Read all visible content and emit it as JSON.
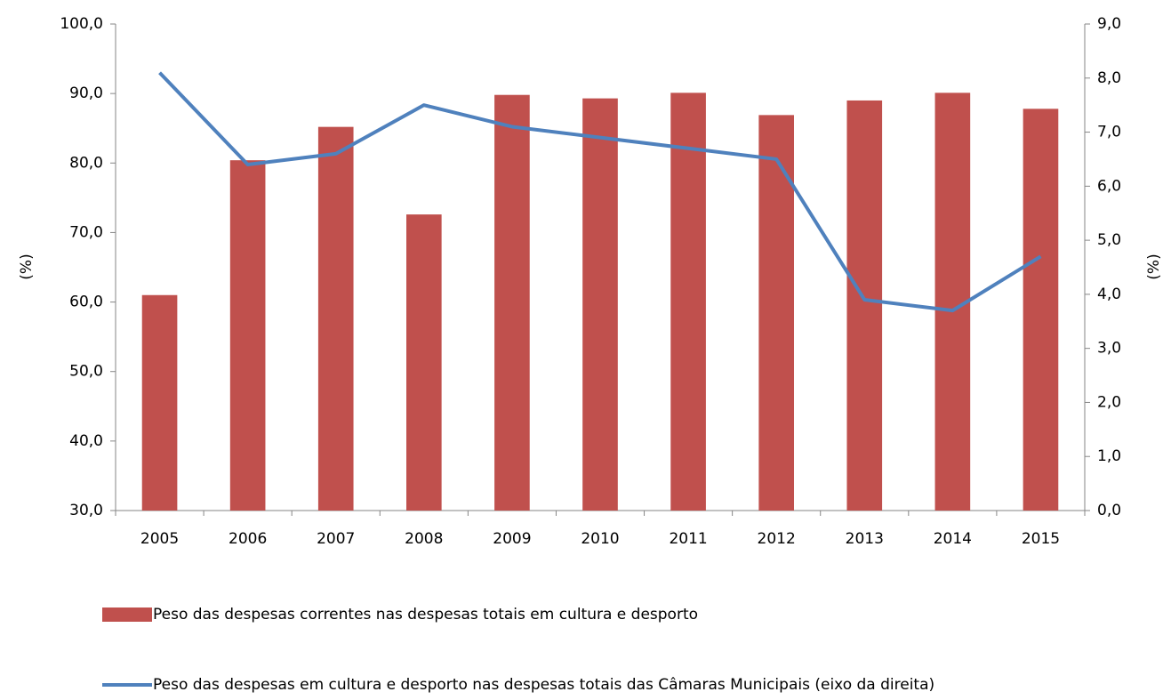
{
  "chart_data": {
    "type": "bar",
    "categories": [
      "2005",
      "2006",
      "2007",
      "2008",
      "2009",
      "2010",
      "2011",
      "2012",
      "2013",
      "2014",
      "2015"
    ],
    "y_label": "(%)",
    "y2_label": "(%)",
    "legend": "bottom",
    "ylim": [
      30,
      100
    ],
    "yticks": [
      {
        "value": 30,
        "label": "30,0"
      },
      {
        "value": 40,
        "label": "40,0"
      },
      {
        "value": 50,
        "label": "50,0"
      },
      {
        "value": 60,
        "label": "60,0"
      },
      {
        "value": 70,
        "label": "70,0"
      },
      {
        "value": 80,
        "label": "80,0"
      },
      {
        "value": 90,
        "label": "90,0"
      },
      {
        "value": 100,
        "label": "100,0"
      }
    ],
    "y2lim": [
      0,
      9
    ],
    "y2ticks": [
      {
        "value": 0,
        "label": "0,0"
      },
      {
        "value": 1,
        "label": "1,0"
      },
      {
        "value": 2,
        "label": "2,0"
      },
      {
        "value": 3,
        "label": "3,0"
      },
      {
        "value": 4,
        "label": "4,0"
      },
      {
        "value": 5,
        "label": "5,0"
      },
      {
        "value": 6,
        "label": "6,0"
      },
      {
        "value": 7,
        "label": "7,0"
      },
      {
        "value": 8,
        "label": "8,0"
      },
      {
        "value": 9,
        "label": "9,0"
      }
    ],
    "series": [
      {
        "name": "Peso das despesas correntes nas despesas totais em cultura e desporto",
        "type": "bar",
        "color": "#c0504d",
        "values": [
          61.0,
          80.4,
          85.2,
          72.6,
          89.8,
          89.3,
          90.1,
          86.9,
          89.0,
          90.1,
          87.8
        ]
      },
      {
        "name": "Peso das despesas em cultura e desporto nas despesas totais das Câmaras Municipais (eixo da direita)",
        "type": "line",
        "axis": "y2",
        "color": "#4f81bd",
        "values": [
          8.1,
          6.4,
          6.6,
          7.5,
          7.1,
          6.9,
          6.7,
          6.5,
          3.9,
          3.7,
          4.7
        ]
      }
    ]
  }
}
